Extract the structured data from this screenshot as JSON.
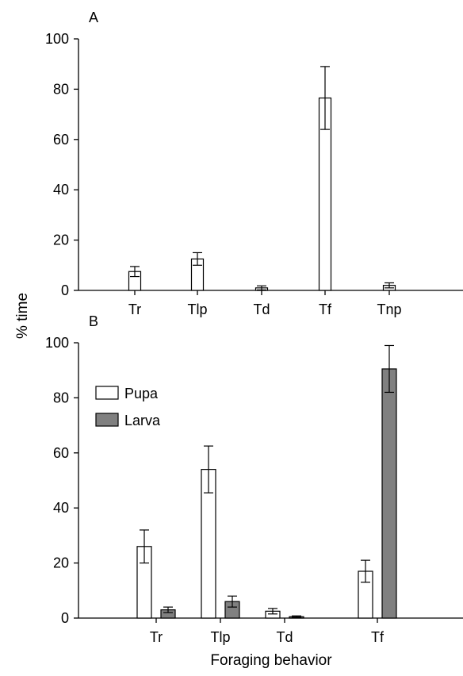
{
  "figure": {
    "ylabel": "% time",
    "xlabel": "Foraging behavior"
  },
  "chart_data": [
    {
      "panel": "A",
      "type": "bar",
      "categories": [
        "Tr",
        "Tlp",
        "Td",
        "Tf",
        "Tnp"
      ],
      "series": [
        {
          "name": "",
          "color": "#ffffff",
          "values": [
            7.5,
            12.5,
            1.0,
            76.5,
            2.0
          ],
          "errors": [
            2.0,
            2.5,
            0.8,
            12.5,
            1.0
          ]
        }
      ],
      "ylim": [
        0,
        100
      ],
      "yticks": [
        0,
        20,
        40,
        60,
        80,
        100
      ],
      "ylabel": "% time",
      "xlabel": "",
      "grid": false
    },
    {
      "panel": "B",
      "type": "bar",
      "categories": [
        "Tr",
        "Tlp",
        "Td",
        "Tf"
      ],
      "series": [
        {
          "name": "Pupa",
          "color": "#ffffff",
          "values": [
            26.0,
            54.0,
            2.5,
            17.0
          ],
          "errors": [
            6.0,
            8.5,
            1.0,
            4.0
          ]
        },
        {
          "name": "Larva",
          "color": "#808080",
          "values": [
            3.0,
            6.0,
            0.5,
            90.5
          ],
          "errors": [
            1.0,
            2.0,
            0.3,
            8.5
          ]
        }
      ],
      "ylim": [
        0,
        100
      ],
      "yticks": [
        0,
        20,
        40,
        60,
        80,
        100
      ],
      "ylabel": "% time",
      "xlabel": "Foraging behavior",
      "legend": "top-left",
      "grid": false
    }
  ]
}
